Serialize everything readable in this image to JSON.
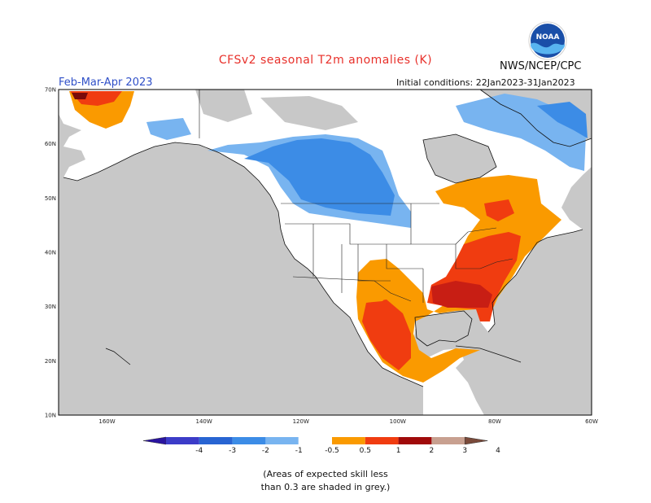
{
  "header": {
    "title": "CFSv2 seasonal T2m anomalies (K)",
    "org": "NWS/NCEP/CPC",
    "season": "Feb-Mar-Apr 2023",
    "initial_conditions": "Initial conditions: 22Jan2023-31Jan2023",
    "logo_text": "NOAA"
  },
  "map": {
    "lon_range": [
      -170,
      -60
    ],
    "lat_range": [
      10,
      70
    ],
    "lat_labels": [
      {
        "lat": 70,
        "label": "70N"
      },
      {
        "lat": 60,
        "label": "60N"
      },
      {
        "lat": 50,
        "label": "50N"
      },
      {
        "lat": 40,
        "label": "40N"
      },
      {
        "lat": 30,
        "label": "30N"
      },
      {
        "lat": 20,
        "label": "20N"
      },
      {
        "lat": 10,
        "label": "10N"
      }
    ],
    "lon_labels": [
      {
        "lon": -160,
        "label": "160W"
      },
      {
        "lon": -140,
        "label": "140W"
      },
      {
        "lon": -120,
        "label": "120W"
      },
      {
        "lon": -100,
        "label": "100W"
      },
      {
        "lon": -80,
        "label": "80W"
      },
      {
        "lon": -60,
        "label": "60W"
      }
    ],
    "colors": {
      "ocean": "#c8c8c8",
      "land": "#ffffff",
      "grey_low_skill": "#c8c8c8",
      "lightblue": "#78b4f0",
      "blue": "#3c8ce6",
      "orange": "#fa9a00",
      "redorange": "#f03c10",
      "red": "#c81e14",
      "darkred": "#7a0a0a"
    }
  },
  "legend": {
    "ticks": [
      "-4",
      "-3",
      "-2",
      "-1",
      "-0.5",
      "0.5",
      "1",
      "2",
      "3",
      "4"
    ],
    "colors": [
      "#2a14a0",
      "#3c3cc8",
      "#2864d2",
      "#3c8ce6",
      "#78b4f0",
      "#ffffff",
      "#fa9a00",
      "#f03c10",
      "#a00a0a",
      "#c8a090",
      "#7a4a3a"
    ]
  },
  "footnote": {
    "line1": "(Areas of expected skill less",
    "line2": "than 0.3 are shaded in grey.)"
  }
}
